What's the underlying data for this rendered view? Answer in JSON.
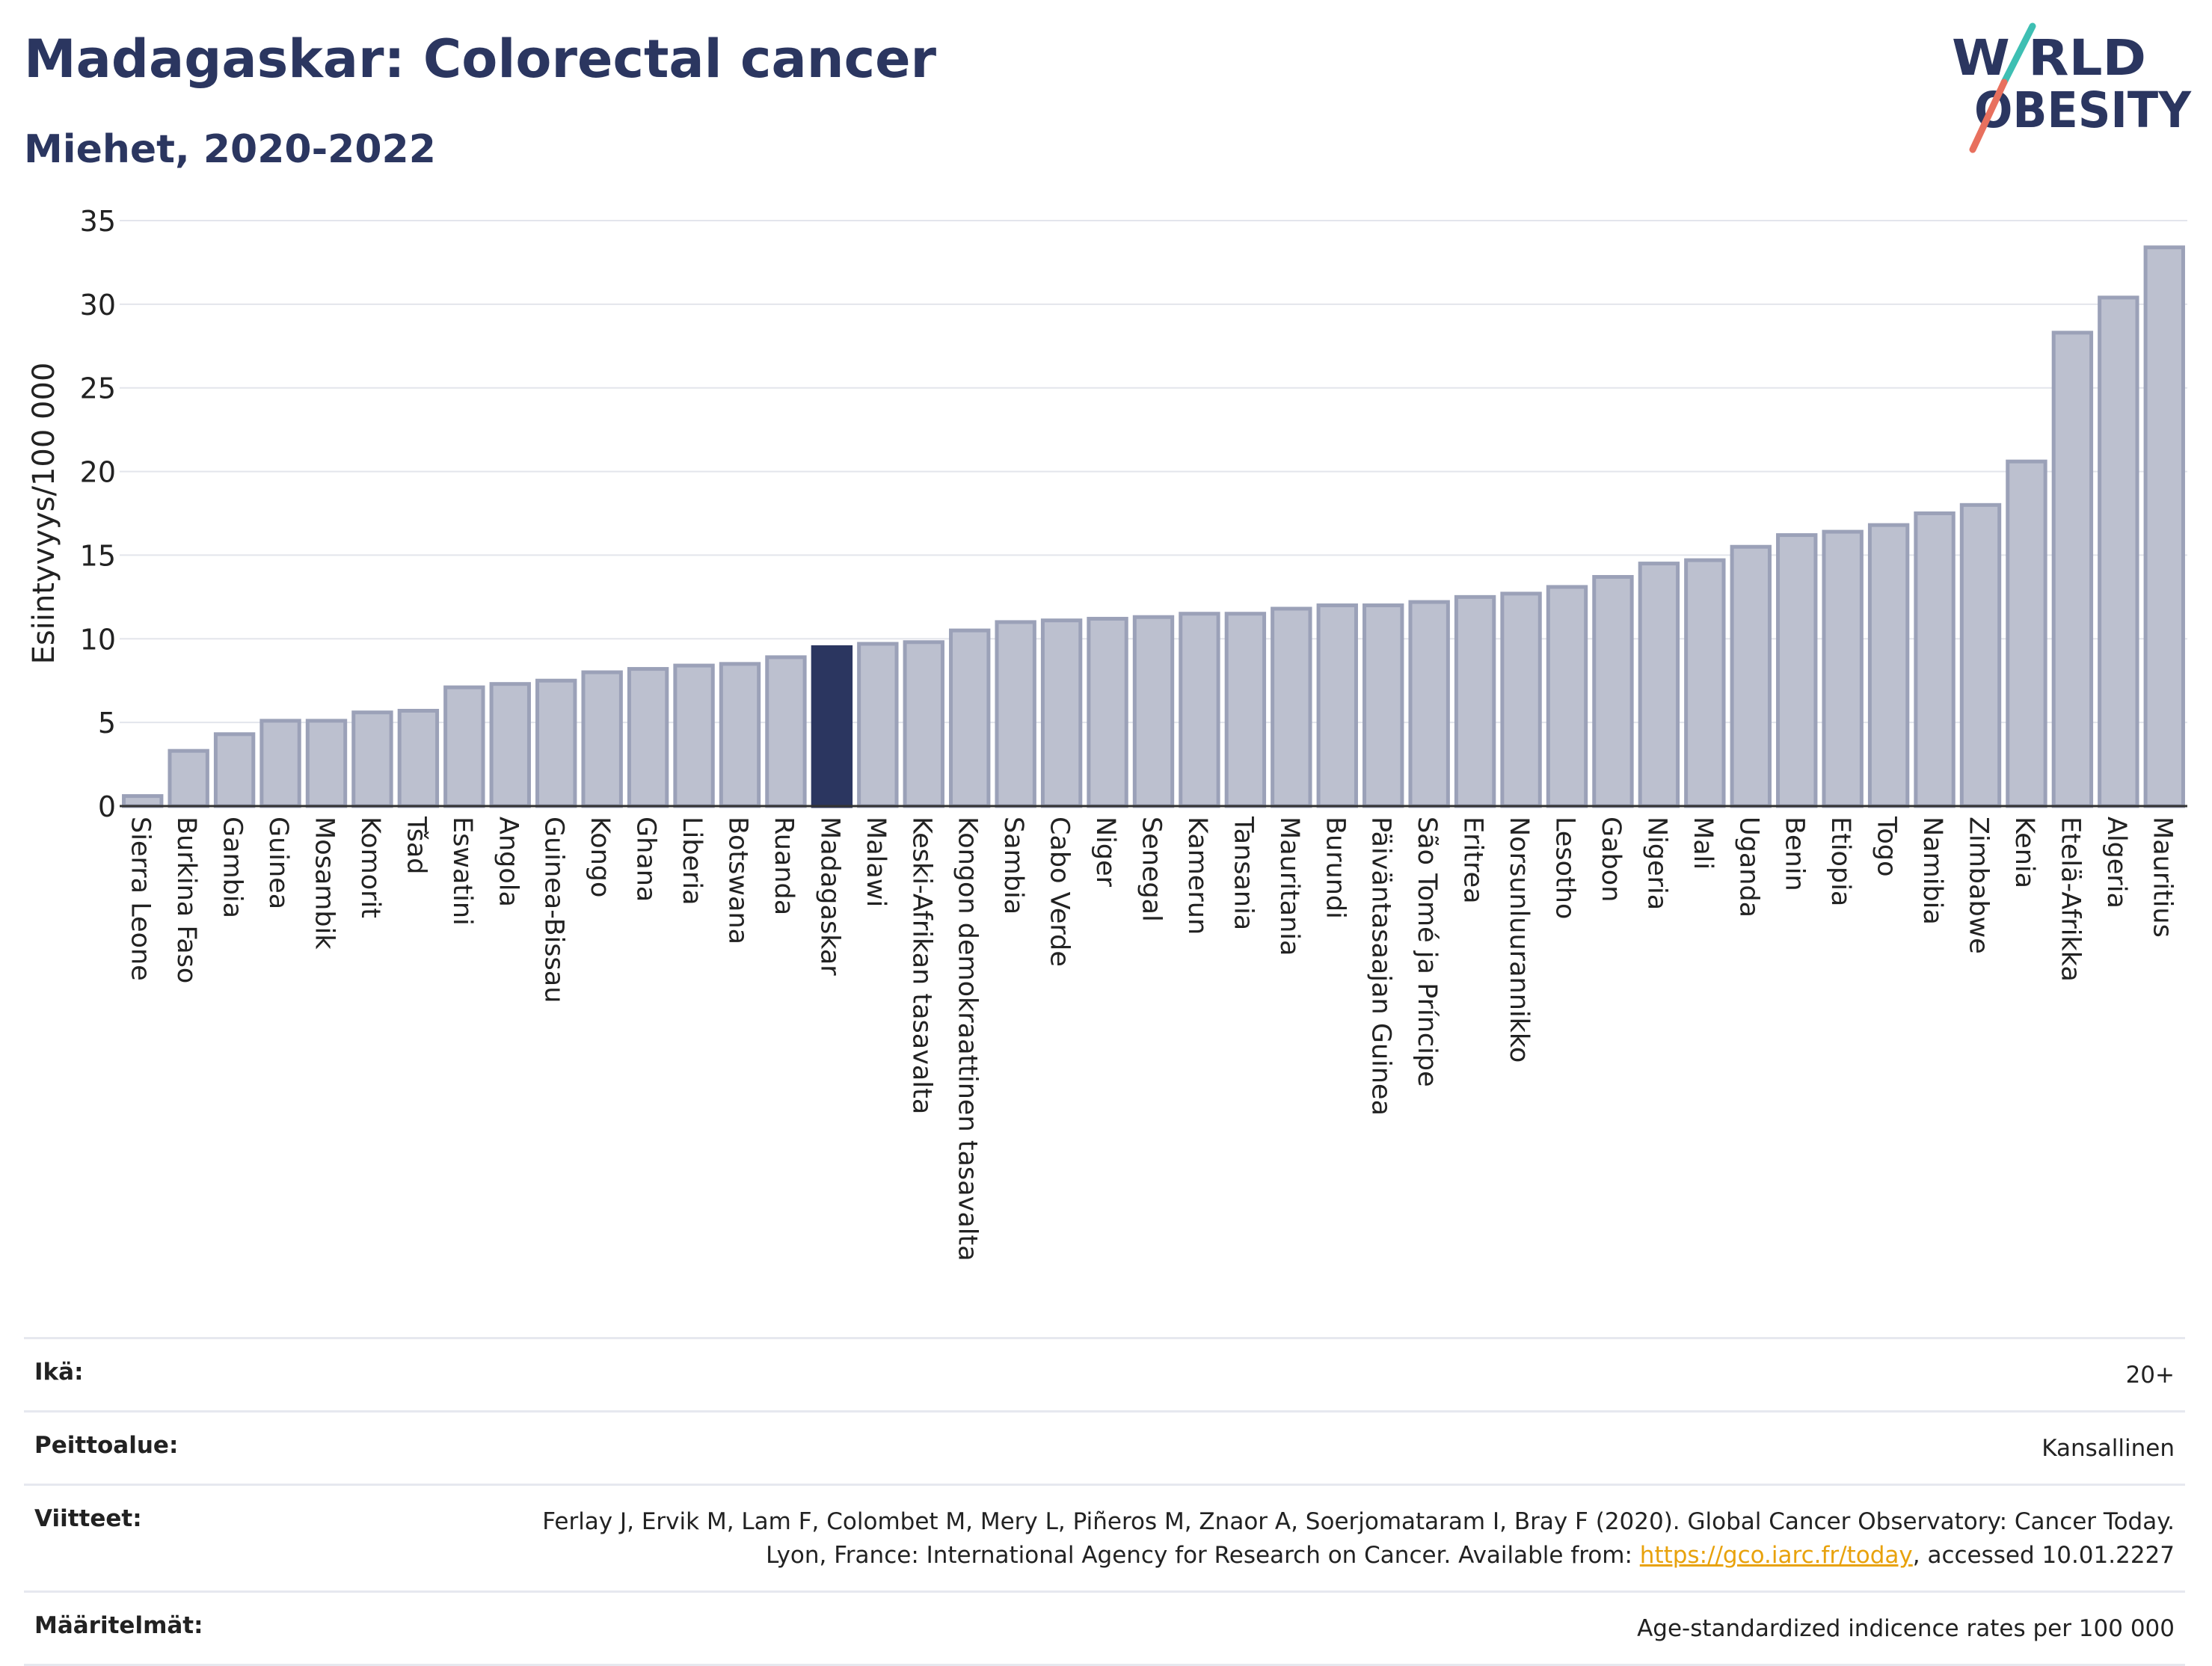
{
  "header": {
    "title": "Madagaskar: Colorectal cancer",
    "subtitle": "Miehet, 2020-2022"
  },
  "logo": {
    "line1": "W RLD",
    "line2": "OBESITY",
    "icon": "world-obesity-logo"
  },
  "colors": {
    "highlight": "#2b3660",
    "bar_fill": "#bcc0cf",
    "bar_stroke": "#9ba1b8",
    "accent_teal": "#3ebfb3",
    "accent_red": "#e8705e"
  },
  "chart_data": {
    "type": "bar",
    "ylabel": "Esiintyvyys/100 000",
    "ylim": [
      0,
      35
    ],
    "yticks": [
      0,
      5,
      10,
      15,
      20,
      25,
      30,
      35
    ],
    "grid": true,
    "highlight": "Madagaskar",
    "categories": [
      "Sierra Leone",
      "Burkina Faso",
      "Gambia",
      "Guinea",
      "Mosambik",
      "Komorit",
      "Tšad",
      "Eswatini",
      "Angola",
      "Guinea-Bissau",
      "Kongo",
      "Ghana",
      "Liberia",
      "Botswana",
      "Ruanda",
      "Madagaskar",
      "Malawi",
      "Keski-Afrikan tasavalta",
      "Kongon demokraattinen tasavalta",
      "Sambia",
      "Cabo Verde",
      "Niger",
      "Senegal",
      "Kamerun",
      "Tansania",
      "Mauritania",
      "Burundi",
      "Päiväntasaajan Guinea",
      "São Tomé ja Príncipe",
      "Eritrea",
      "Norsunluurannikko",
      "Lesotho",
      "Gabon",
      "Nigeria",
      "Mali",
      "Uganda",
      "Benin",
      "Etiopia",
      "Togo",
      "Namibia",
      "Zimbabwe",
      "Kenia",
      "Etelä-Afrikka",
      "Algeria",
      "Mauritius"
    ],
    "values": [
      0.6,
      3.3,
      4.3,
      5.1,
      5.1,
      5.6,
      5.7,
      7.1,
      7.3,
      7.5,
      8.0,
      8.2,
      8.4,
      8.5,
      8.9,
      9.5,
      9.7,
      9.8,
      10.5,
      11.0,
      11.1,
      11.2,
      11.3,
      11.5,
      11.5,
      11.8,
      12.0,
      12.0,
      12.2,
      12.5,
      12.7,
      13.1,
      13.7,
      14.5,
      14.7,
      15.5,
      16.2,
      16.4,
      16.8,
      17.5,
      18.0,
      20.6,
      28.3,
      30.4,
      33.4
    ]
  },
  "meta": [
    {
      "key": "Ikä:",
      "value": "20+"
    },
    {
      "key": "Peittoalue:",
      "value": "Kansallinen"
    },
    {
      "key": "Viitteet:",
      "value_pre": "Ferlay J, Ervik M, Lam F, Colombet M, Mery L, Piñeros M, Znaor A, Soerjomataram I, Bray F (2020). Global Cancer Observatory: Cancer Today. Lyon, France: International Agency for Research on Cancer. Available from: ",
      "link": "https://gco.iarc.fr/today",
      "value_post": ", accessed 10.01.2227"
    },
    {
      "key": "Määritelmät:",
      "value": "Age-standardized indicence rates per 100 000"
    }
  ]
}
